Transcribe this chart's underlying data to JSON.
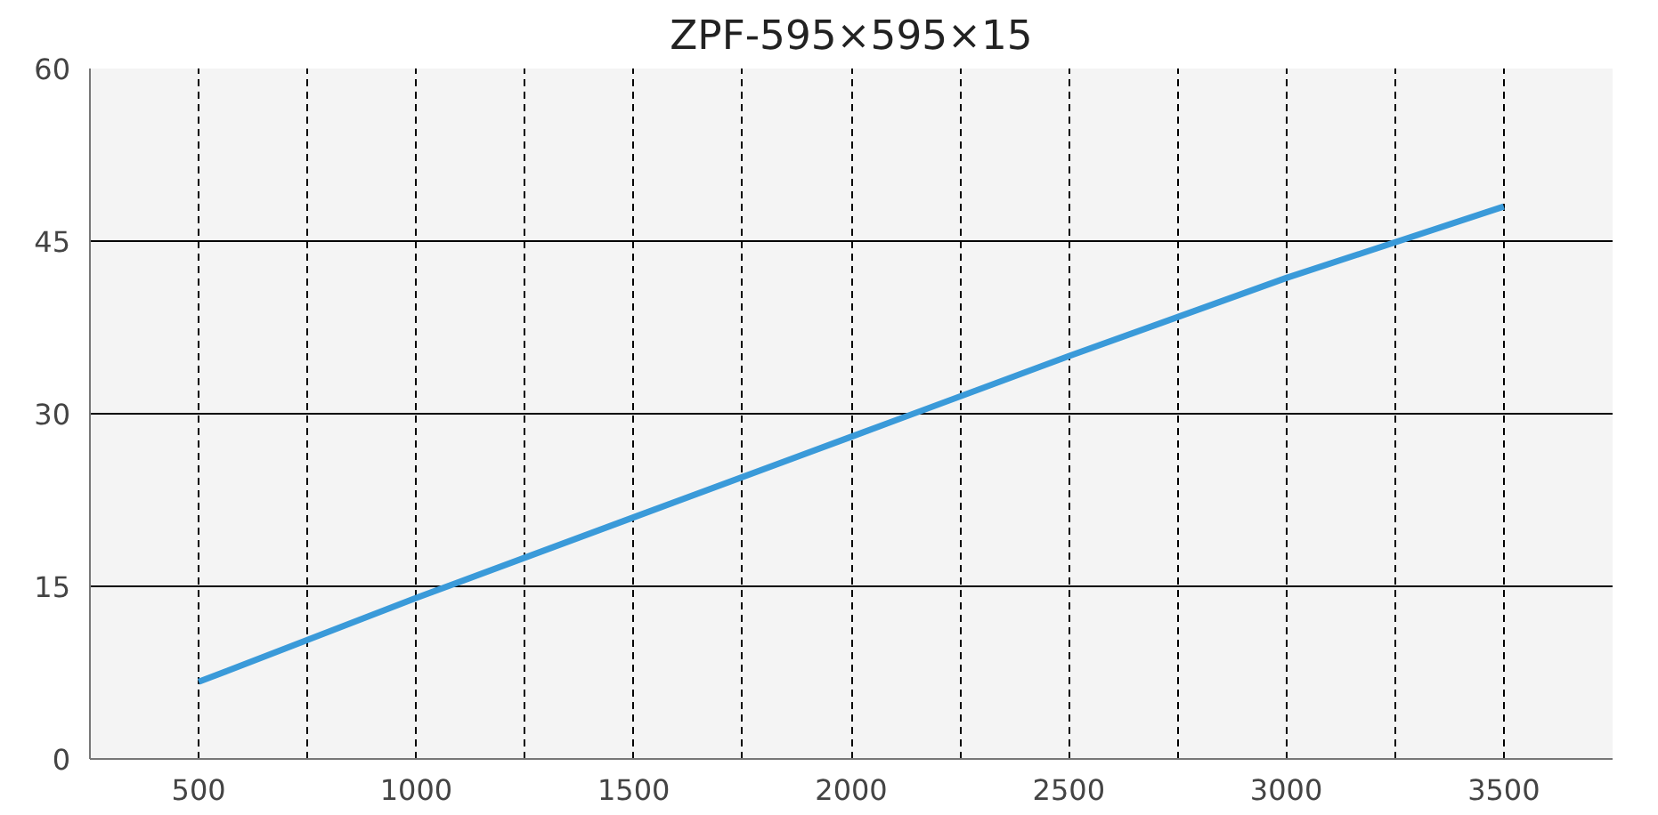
{
  "chart_data": {
    "type": "line",
    "title": "ZPF-595×595×15",
    "x": [
      500,
      1000,
      1500,
      2000,
      2500,
      3000,
      3500
    ],
    "series": [
      {
        "color": "#3a9ad9",
        "values": [
          6.7,
          14,
          21,
          28,
          35,
          41.8,
          48
        ]
      }
    ],
    "xlim": [
      250,
      3750
    ],
    "xticks": [
      {
        "value": 250,
        "label": null
      },
      500,
      {
        "value": 750,
        "label": null
      },
      1000,
      {
        "value": 1250,
        "label": null
      },
      1500,
      {
        "value": 1750,
        "label": null
      },
      2000,
      {
        "value": 2250,
        "label": null
      },
      2500,
      {
        "value": 2750,
        "label": null
      },
      3000,
      {
        "value": 3250,
        "label": null
      },
      3500,
      {
        "value": 3750,
        "label": null
      }
    ],
    "ylim": [
      0,
      60
    ],
    "yticks": [
      0,
      15,
      30,
      45,
      60
    ],
    "grid": true,
    "marker": "none",
    "line_style": "solid"
  }
}
